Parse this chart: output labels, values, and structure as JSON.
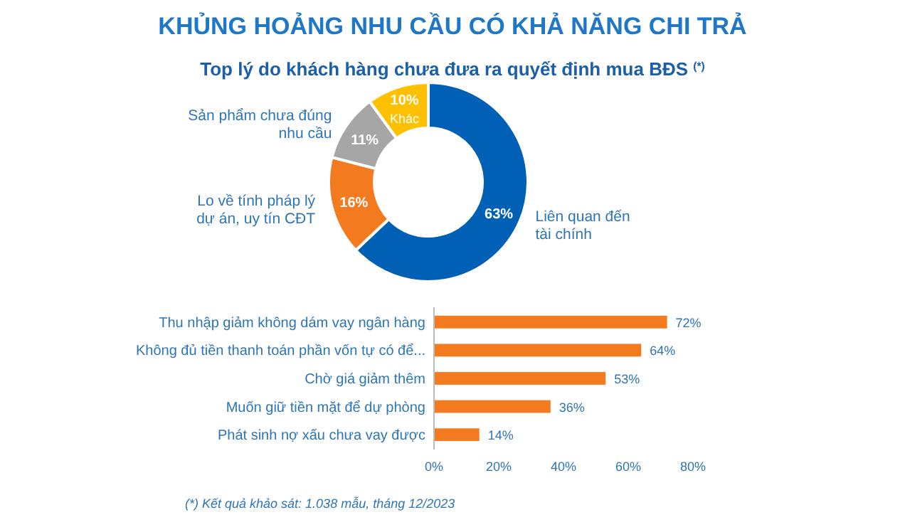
{
  "chart_data": [
    {
      "type": "donut",
      "title": "KHỦNG HOẢNG NHU CẦU CÓ KHẢ NĂNG CHI TRẢ",
      "subtitle": "Top lý do khách hàng chưa đưa ra quyết định mua BĐS $^{(*)}$",
      "categories": [
        "Liên quan đến tài chính",
        "Lo về tính pháp lý dự án, uy tín CĐT",
        "Sản phẩm chưa đúng nhu cầu",
        "Khác"
      ],
      "values": [
        63,
        16,
        11,
        10
      ],
      "colors": [
        "#0060b6",
        "#f47a1f",
        "#a6a6a6",
        "#ffc000"
      ],
      "value_labels": [
        "63%",
        "16%",
        "11%",
        "10%"
      ]
    },
    {
      "type": "bar",
      "orientation": "horizontal",
      "categories": [
        "Thu nhập giảm không dám vay ngân hàng",
        "Không đủ tiền thanh toán phần vốn tự có để...",
        "Chờ giá giảm thêm",
        "Muốn giữ tiền mặt để dự phòng",
        "Phát sinh nợ xấu chưa vay được"
      ],
      "values": [
        72,
        64,
        53,
        36,
        14
      ],
      "color": "#f47a1f",
      "value_labels": [
        "72%",
        "64%",
        "53%",
        "36%",
        "14%"
      ],
      "xlim": [
        0,
        80
      ],
      "xticks": [
        {
          "value": 0,
          "label": "0%"
        },
        {
          "value": 20,
          "label": "20%"
        },
        {
          "value": 40,
          "label": "40%"
        },
        {
          "value": 60,
          "label": "60%"
        },
        {
          "value": 80,
          "label": "80%"
        }
      ],
      "grid": false,
      "annotations": [
        "(*) Kết quả khảo sát: 1.038 mẫu, tháng 12/2023"
      ]
    }
  ]
}
